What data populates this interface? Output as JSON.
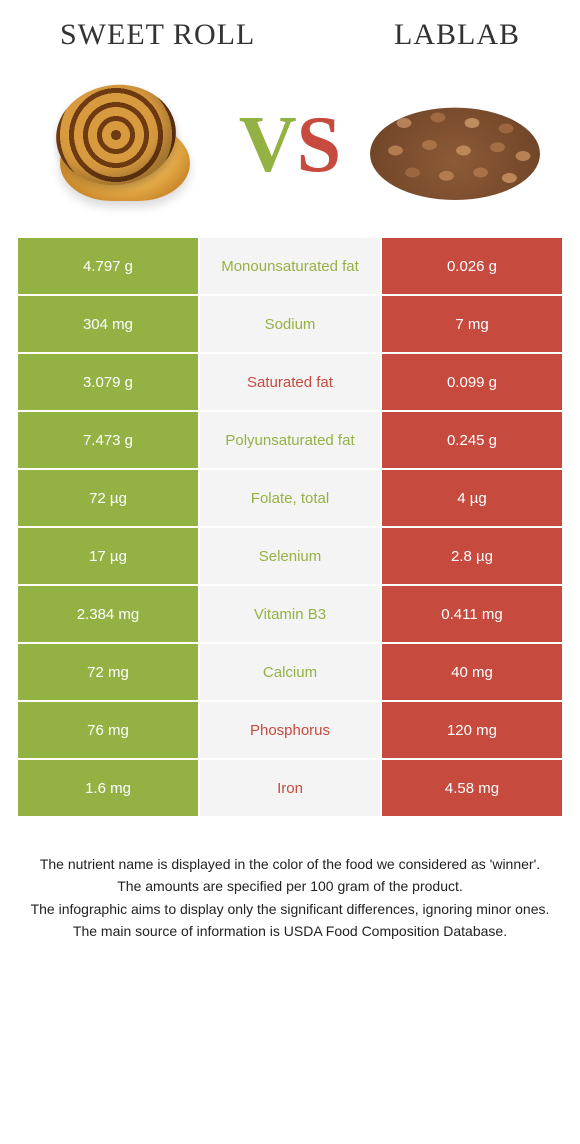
{
  "header": {
    "left_title": "SWEET ROLL",
    "right_title": "LABLAB"
  },
  "vs": {
    "v": "V",
    "s": "S"
  },
  "colors": {
    "left_bg": "#94b244",
    "right_bg": "#c74a3e",
    "mid_bg": "#f4f4f4",
    "left_text": "#94b244",
    "right_text": "#c74a3e"
  },
  "rows": [
    {
      "left": "4.797 g",
      "label": "Monounsaturated fat",
      "right": "0.026 g",
      "winner": "left"
    },
    {
      "left": "304 mg",
      "label": "Sodium",
      "right": "7 mg",
      "winner": "left"
    },
    {
      "left": "3.079 g",
      "label": "Saturated fat",
      "right": "0.099 g",
      "winner": "right"
    },
    {
      "left": "7.473 g",
      "label": "Polyunsaturated fat",
      "right": "0.245 g",
      "winner": "left"
    },
    {
      "left": "72 µg",
      "label": "Folate, total",
      "right": "4 µg",
      "winner": "left"
    },
    {
      "left": "17 µg",
      "label": "Selenium",
      "right": "2.8 µg",
      "winner": "left"
    },
    {
      "left": "2.384 mg",
      "label": "Vitamin B3",
      "right": "0.411 mg",
      "winner": "left"
    },
    {
      "left": "72 mg",
      "label": "Calcium",
      "right": "40 mg",
      "winner": "left"
    },
    {
      "left": "76 mg",
      "label": "Phosphorus",
      "right": "120 mg",
      "winner": "right"
    },
    {
      "left": "1.6 mg",
      "label": "Iron",
      "right": "4.58 mg",
      "winner": "right"
    }
  ],
  "footnotes": [
    "The nutrient name is displayed in the color of the food we considered as 'winner'.",
    "The amounts are specified per 100 gram of the product.",
    "The infographic aims to display only the significant differences, ignoring minor ones.",
    "The main source of information is USDA Food Composition Database."
  ]
}
